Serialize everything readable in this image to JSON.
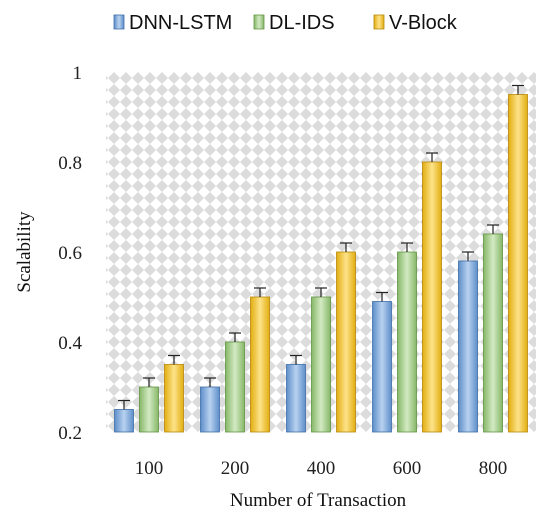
{
  "chart_data": {
    "type": "bar",
    "title": "",
    "xlabel": "Number of Transaction",
    "ylabel": "Scalability",
    "categories": [
      "100",
      "200",
      "400",
      "600",
      "800"
    ],
    "series": [
      {
        "name": "DNN-LSTM",
        "color": "#7fa8d6",
        "values": [
          0.25,
          0.3,
          0.35,
          0.49,
          0.58
        ],
        "errors": [
          0.02,
          0.02,
          0.02,
          0.02,
          0.02
        ]
      },
      {
        "name": "DL-IDS",
        "color": "#a9cf8c",
        "values": [
          0.3,
          0.4,
          0.5,
          0.6,
          0.64
        ],
        "errors": [
          0.02,
          0.02,
          0.02,
          0.02,
          0.02
        ]
      },
      {
        "name": "V-Block",
        "color": "#f3c633",
        "values": [
          0.35,
          0.5,
          0.6,
          0.8,
          0.95
        ],
        "errors": [
          0.02,
          0.02,
          0.02,
          0.02,
          0.02
        ]
      }
    ],
    "ylim": [
      0.2,
      1.0
    ],
    "yticks": [
      "0.2",
      "0.4",
      "0.6",
      "0.8",
      "1"
    ],
    "legend_position": "top",
    "grid": false,
    "plot_background": "checkered gray"
  }
}
